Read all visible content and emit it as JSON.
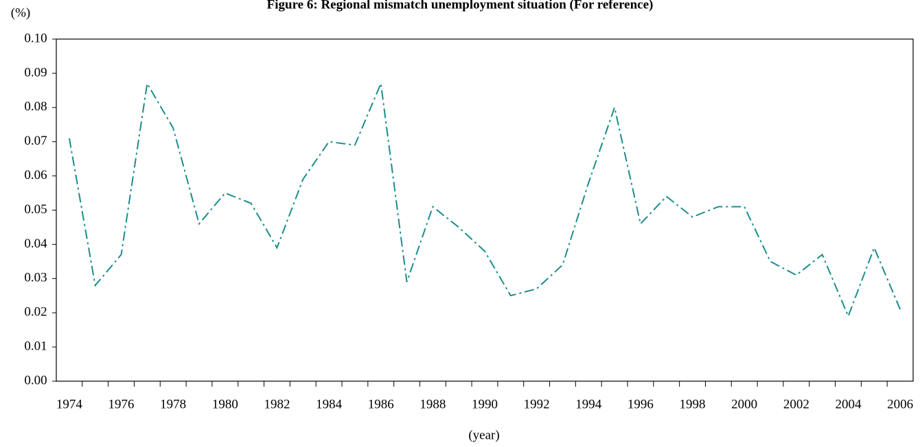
{
  "chart_data": {
    "type": "line",
    "title": "Figure 6: Regional mismatch unemployment situation (For reference)",
    "y_label": "(%)",
    "x_label": "(year)",
    "categories": [
      "1974",
      null,
      "1976",
      null,
      "1978",
      null,
      "1980",
      null,
      "1982",
      null,
      "1984",
      null,
      "1986",
      null,
      "1988",
      null,
      "1990",
      null,
      "1992",
      null,
      "1994",
      null,
      "1996",
      null,
      "1998",
      null,
      "2000",
      null,
      "2002",
      null,
      "2004",
      null,
      "2006"
    ],
    "series": [
      {
        "color": "#1a8c8c",
        "values": [
          0.071,
          0.028,
          0.037,
          0.087,
          0.074,
          0.046,
          0.055,
          0.052,
          0.039,
          0.059,
          0.07,
          0.069,
          0.087,
          0.029,
          0.051,
          0.045,
          0.038,
          0.025,
          0.027,
          0.034,
          0.058,
          0.08,
          0.046,
          0.054,
          0.048,
          0.051,
          0.051,
          0.035,
          0.031,
          0.037,
          0.019,
          0.039,
          0.021
        ]
      }
    ],
    "ylim": [
      0,
      0.1
    ],
    "yticks": [
      {
        "value": 0,
        "label": "0.00"
      },
      0.01,
      0.02,
      0.03,
      0.04,
      0.05,
      0.06,
      0.07,
      0.08,
      0.09,
      {
        "value": 0.1,
        "label": "0.10"
      }
    ],
    "grid": false
  }
}
